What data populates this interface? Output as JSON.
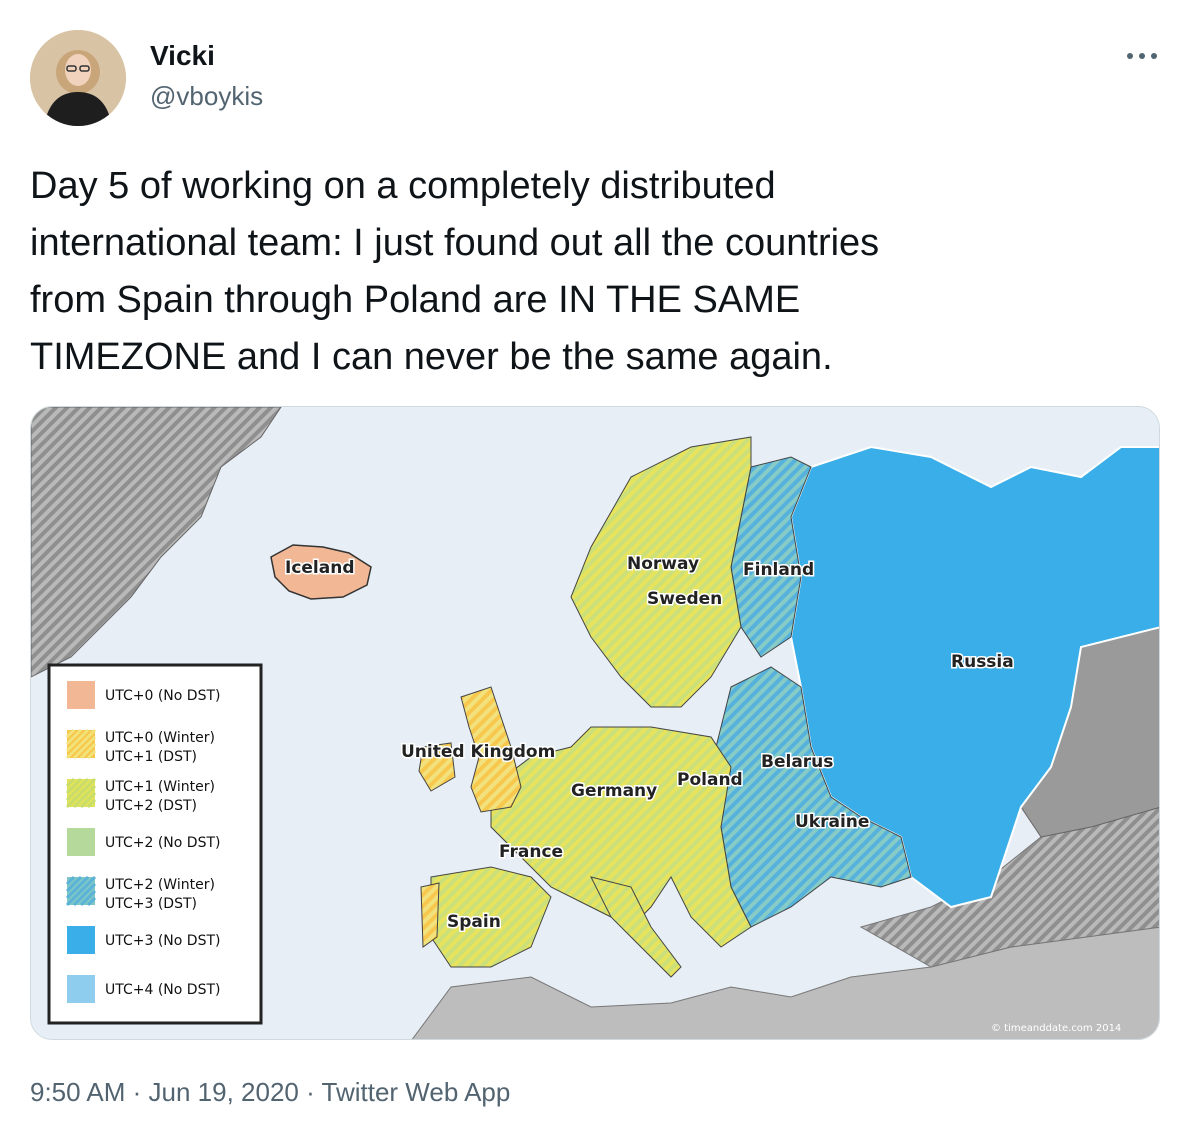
{
  "tweet": {
    "author": {
      "display_name": "Vicki",
      "handle": "@vboykis"
    },
    "text": "Day 5 of working on a completely distributed\ninternational team: I just found out all the countries\nfrom Spain through Poland are IN THE SAME\nTIMEZONE and I can never be the same again.",
    "more_icon": "more-horizontal-icon",
    "meta": {
      "time": "9:50 AM",
      "separator_1": " · ",
      "date": "Jun 19, 2020",
      "separator_2": " · ",
      "source": "Twitter Web App"
    }
  },
  "map": {
    "labels": {
      "iceland": "Iceland",
      "norway": "Norway",
      "sweden": "Sweden",
      "finland": "Finland",
      "russia": "Russia",
      "united_kingdom": "United Kingdom",
      "germany": "Germany",
      "poland": "Poland",
      "belarus": "Belarus",
      "ukraine": "Ukraine",
      "france": "France",
      "spain": "Spain"
    },
    "legend": [
      {
        "line1": "UTC+0 (No DST)",
        "line2": "",
        "color": "#f2b896",
        "hatch": "none"
      },
      {
        "line1": "UTC+0 (Winter)",
        "line2": "UTC+1 (DST)",
        "color": "#f6c74a",
        "hatch": "#f3e27a"
      },
      {
        "line1": "UTC+1 (Winter)",
        "line2": "UTC+2 (DST)",
        "color": "#e3e35a",
        "hatch": "#c9dd6a"
      },
      {
        "line1": "UTC+2 (No DST)",
        "line2": "",
        "color": "#b5d99a",
        "hatch": "none"
      },
      {
        "line1": "UTC+2 (Winter)",
        "line2": "UTC+3 (DST)",
        "color": "#7ec7c6",
        "hatch": "#5cb3d8"
      },
      {
        "line1": "UTC+3 (No DST)",
        "line2": "",
        "color": "#3aaee8",
        "hatch": "none"
      },
      {
        "line1": "UTC+4 (No DST)",
        "line2": "",
        "color": "#8fcdee",
        "hatch": "none"
      }
    ],
    "credit": "© timeanddate.com 2014"
  },
  "colors": {
    "sea": "#e7eef6",
    "text_secondary": "#536471",
    "text_primary": "#0f1419",
    "border": "#cfd9de"
  }
}
